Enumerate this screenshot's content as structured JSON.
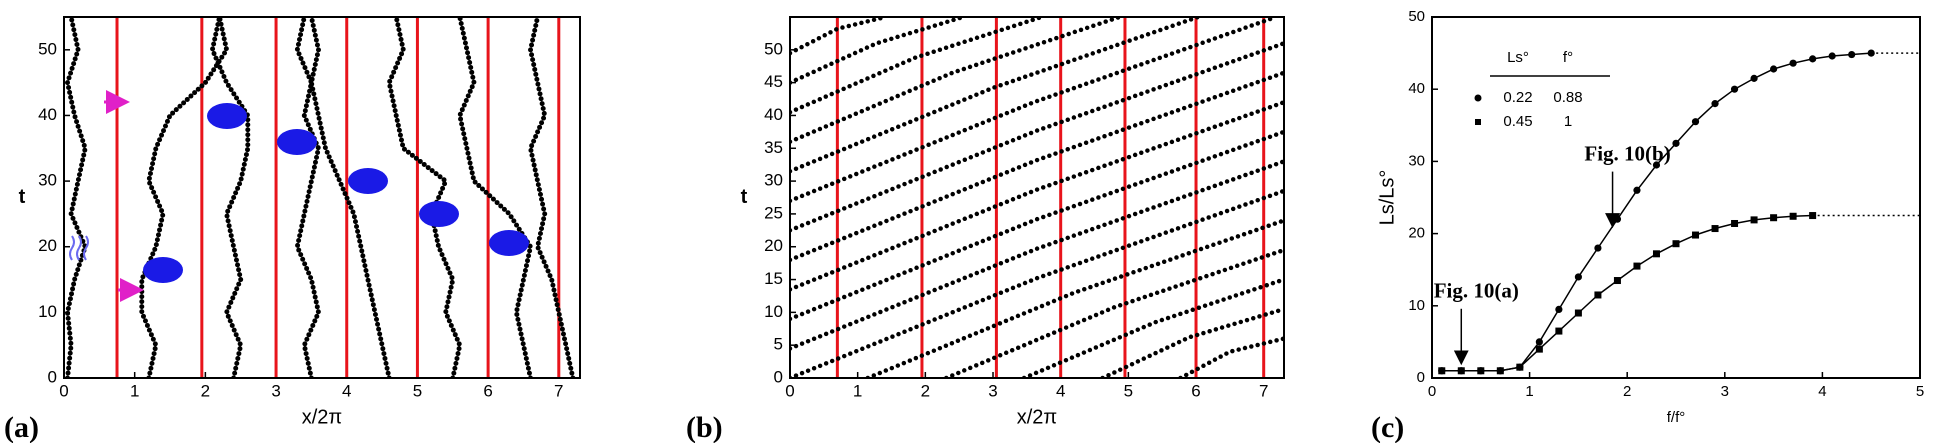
{
  "chart_data": [
    {
      "type": "trajectory",
      "panel_label": "(a)",
      "xlabel": "x/2π",
      "ylabel": "t",
      "xlim": [
        0,
        7.3
      ],
      "ylim": [
        0,
        55
      ],
      "xticks": [
        0,
        1,
        2,
        3,
        4,
        5,
        6,
        7
      ],
      "yticks": [
        0,
        10,
        20,
        30,
        40,
        50
      ],
      "vlines": [
        0.75,
        1.95,
        3.0,
        4.0,
        5.0,
        6.0,
        7.0
      ],
      "vline_color": "#e8141b",
      "color": "#000000",
      "series": [
        {
          "x": [
            0.05,
            0.1,
            0.05,
            0.15,
            0.3,
            0.1,
            0.2,
            0.3,
            0.15,
            0.05,
            0.2,
            0.1
          ],
          "values": [
            0,
            5,
            10,
            15,
            20,
            25,
            30,
            35,
            40,
            45,
            50,
            55
          ]
        },
        {
          "x": [
            1.2,
            1.3,
            1.1,
            1.1,
            1.3,
            1.4,
            1.2,
            1.3,
            1.5,
            2.0,
            2.3,
            2.2
          ],
          "values": [
            0,
            5,
            10,
            15,
            20,
            25,
            30,
            35,
            40,
            45,
            50,
            55
          ]
        },
        {
          "x": [
            2.4,
            2.5,
            2.3,
            2.5,
            2.4,
            2.3,
            2.5,
            2.6,
            2.6,
            2.3,
            2.1,
            2.2
          ],
          "values": [
            0,
            5,
            10,
            15,
            20,
            25,
            30,
            35,
            40,
            45,
            50,
            55
          ]
        },
        {
          "x": [
            3.5,
            3.4,
            3.6,
            3.5,
            3.3,
            3.4,
            3.5,
            3.6,
            3.4,
            3.5,
            3.3,
            3.4
          ],
          "values": [
            0,
            5,
            10,
            15,
            20,
            25,
            30,
            35,
            40,
            45,
            50,
            55
          ]
        },
        {
          "x": [
            4.6,
            4.5,
            4.4,
            4.3,
            4.2,
            4.1,
            3.9,
            3.7,
            3.6,
            3.5,
            3.6,
            3.5
          ],
          "values": [
            0,
            5,
            10,
            15,
            20,
            25,
            30,
            35,
            40,
            45,
            50,
            55
          ]
        },
        {
          "x": [
            5.5,
            5.6,
            5.4,
            5.5,
            5.3,
            5.2,
            5.4,
            4.8,
            4.7,
            4.6,
            4.8,
            4.7
          ],
          "values": [
            0,
            5,
            10,
            15,
            20,
            25,
            30,
            35,
            40,
            45,
            50,
            55
          ]
        },
        {
          "x": [
            6.6,
            6.5,
            6.4,
            6.5,
            6.6,
            6.3,
            5.8,
            5.7,
            5.6,
            5.8,
            5.7,
            5.6
          ],
          "values": [
            0,
            5,
            10,
            15,
            20,
            25,
            30,
            35,
            40,
            45,
            50,
            55
          ]
        },
        {
          "x": [
            7.2,
            7.1,
            7.0,
            6.9,
            6.7,
            6.8,
            6.7,
            6.6,
            6.8,
            6.7,
            6.6,
            6.7
          ],
          "values": [
            0,
            5,
            10,
            15,
            20,
            25,
            30,
            35,
            40,
            45,
            50,
            55
          ]
        }
      ]
    },
    {
      "type": "trajectory",
      "panel_label": "(b)",
      "xlabel": "x/2π",
      "ylabel": "t",
      "xlim": [
        0,
        7.3
      ],
      "ylim": [
        0,
        55
      ],
      "xticks": [
        0,
        1,
        2,
        3,
        4,
        5,
        6,
        7
      ],
      "yticks": [
        0,
        5,
        10,
        15,
        20,
        25,
        30,
        35,
        40,
        45,
        50
      ],
      "vlines": [
        0.7,
        1.95,
        3.05,
        4.0,
        4.95,
        6.0,
        7.0
      ],
      "vline_color": "#e8141b",
      "color": "#000000",
      "series": [
        {
          "x": [
            5.77,
            6.5,
            7.3
          ],
          "values": [
            0,
            4,
            6
          ]
        },
        {
          "x": [
            4.62,
            5.9,
            7.3
          ],
          "values": [
            0,
            6.2,
            10.5
          ]
        },
        {
          "x": [
            3.46,
            5.4,
            7.3
          ],
          "values": [
            0,
            8.5,
            15
          ]
        },
        {
          "x": [
            2.31,
            4.8,
            7.3
          ],
          "values": [
            0,
            10.8,
            19.5
          ]
        },
        {
          "x": [
            1.15,
            4.2,
            7.3
          ],
          "values": [
            0,
            13,
            24
          ]
        },
        {
          "x": [
            0,
            3.65,
            7.3
          ],
          "values": [
            0,
            15.2,
            28.5
          ]
        },
        {
          "x": [
            0,
            3.65,
            7.3
          ],
          "values": [
            4.5,
            19.7,
            33
          ]
        },
        {
          "x": [
            0,
            3.65,
            7.3
          ],
          "values": [
            9,
            24.2,
            37.5
          ]
        },
        {
          "x": [
            0,
            3.65,
            7.3
          ],
          "values": [
            13.5,
            28.7,
            42
          ]
        },
        {
          "x": [
            0,
            3.65,
            7.3
          ],
          "values": [
            18,
            33.2,
            46.5
          ]
        },
        {
          "x": [
            0,
            3.65,
            7.3
          ],
          "values": [
            22.5,
            37.7,
            51
          ]
        },
        {
          "x": [
            0,
            3.6,
            7.18
          ],
          "values": [
            27,
            42,
            55
          ]
        },
        {
          "x": [
            0,
            3.0,
            6.03
          ],
          "values": [
            31.5,
            44.2,
            55
          ]
        },
        {
          "x": [
            0,
            2.4,
            4.87
          ],
          "values": [
            36,
            46.5,
            55
          ]
        },
        {
          "x": [
            0,
            1.85,
            3.72
          ],
          "values": [
            40.5,
            48.8,
            55
          ]
        },
        {
          "x": [
            0,
            1.28,
            2.56
          ],
          "values": [
            45,
            51,
            55
          ]
        },
        {
          "x": [
            0,
            0.7,
            1.41
          ],
          "values": [
            49.5,
            53.2,
            55
          ]
        }
      ]
    },
    {
      "type": "line",
      "panel_label": "(c)",
      "xlabel": "f/f°",
      "ylabel": "Ls/Ls°",
      "xlim": [
        0,
        5
      ],
      "ylim": [
        0,
        50
      ],
      "xticks": [
        0,
        1,
        2,
        3,
        4,
        5
      ],
      "yticks": [
        0,
        10,
        20,
        30,
        40,
        50
      ],
      "color": "#000000",
      "legend_headers": [
        "Ls°",
        "f°"
      ],
      "series": [
        {
          "marker": "circle",
          "legend_values": [
            0.22,
            0.88
          ],
          "x": [
            0.1,
            0.3,
            0.5,
            0.7,
            0.9,
            1.1,
            1.3,
            1.5,
            1.7,
            1.9,
            2.1,
            2.3,
            2.5,
            2.7,
            2.9,
            3.1,
            3.3,
            3.5,
            3.7,
            3.9,
            4.1,
            4.3,
            4.5
          ],
          "values": [
            1,
            1,
            1,
            1,
            1.5,
            5,
            9.5,
            14,
            18,
            22,
            26,
            29.5,
            32.5,
            35.5,
            38,
            40,
            41.5,
            42.8,
            43.6,
            44.2,
            44.6,
            44.8,
            45
          ]
        },
        {
          "marker": "square",
          "legend_values": [
            0.45,
            1
          ],
          "x": [
            0.1,
            0.3,
            0.5,
            0.7,
            0.9,
            1.1,
            1.3,
            1.5,
            1.7,
            1.9,
            2.1,
            2.3,
            2.5,
            2.7,
            2.9,
            3.1,
            3.3,
            3.5,
            3.7,
            3.9
          ],
          "values": [
            1,
            1,
            1,
            1,
            1.5,
            4,
            6.5,
            9,
            11.5,
            13.5,
            15.5,
            17.2,
            18.6,
            19.8,
            20.7,
            21.4,
            21.9,
            22.2,
            22.4,
            22.5
          ]
        }
      ],
      "annotations": [
        {
          "text": "Fig. 10(a)",
          "x": 0.3,
          "y": 1
        },
        {
          "text": "Fig. 10(b)",
          "x": 1.85,
          "y": 20
        }
      ]
    }
  ]
}
